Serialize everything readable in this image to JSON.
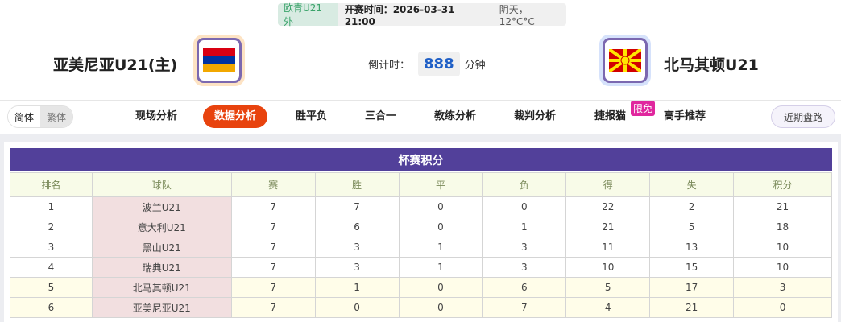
{
  "match": {
    "league": "欧青U21外",
    "kickoff": "开赛时间：2026-03-31 21:00",
    "weather": "阴天， 12°C°C",
    "home": {
      "name": "亚美尼亚U21(主)",
      "flag": "armenia-flag"
    },
    "away": {
      "name": "北马其顿U21",
      "flag": "north-macedonia-flag"
    },
    "countdown_label": "倒计时：",
    "countdown_value": "888",
    "countdown_unit": "分钟"
  },
  "lang": {
    "simplified": "简体",
    "traditional": "繁体"
  },
  "nav": [
    {
      "label": "现场分析"
    },
    {
      "label": "数据分析",
      "active": true
    },
    {
      "label": "胜平负"
    },
    {
      "label": "三合一"
    },
    {
      "label": "教练分析"
    },
    {
      "label": "裁判分析"
    },
    {
      "label": "捷报猫"
    },
    {
      "label": "高手推荐"
    }
  ],
  "nav_badge": "限免",
  "recent_button": "近期盘路",
  "table": {
    "title": "杯赛积分",
    "headers": [
      "排名",
      "球队",
      "赛",
      "胜",
      "平",
      "负",
      "得",
      "失",
      "积分"
    ],
    "rows": [
      [
        "1",
        "波兰U21",
        "7",
        "7",
        "0",
        "0",
        "22",
        "2",
        "21"
      ],
      [
        "2",
        "意大利U21",
        "7",
        "6",
        "0",
        "1",
        "21",
        "5",
        "18"
      ],
      [
        "3",
        "黑山U21",
        "7",
        "3",
        "1",
        "3",
        "11",
        "13",
        "10"
      ],
      [
        "4",
        "瑞典U21",
        "7",
        "3",
        "1",
        "3",
        "10",
        "15",
        "10"
      ],
      [
        "5",
        "北马其顿U21",
        "7",
        "1",
        "0",
        "6",
        "5",
        "17",
        "3"
      ],
      [
        "6",
        "亚美尼亚U21",
        "7",
        "0",
        "0",
        "7",
        "4",
        "21",
        "0"
      ]
    ]
  },
  "colors": {
    "accent": "#e8430e",
    "title_bar": "#52409a",
    "badge": "#e0279e"
  }
}
